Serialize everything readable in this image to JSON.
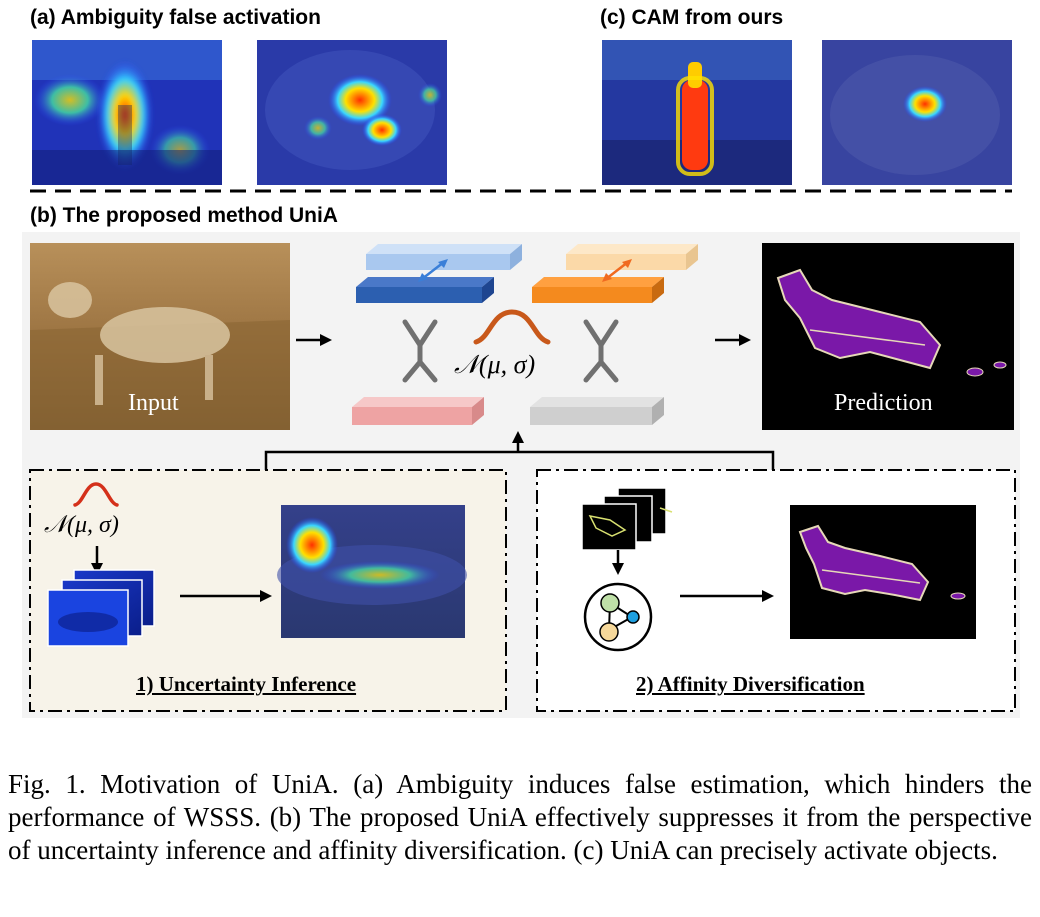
{
  "section_a": {
    "title": "(a) Ambiguity  false activation"
  },
  "section_c": {
    "title": "(c) CAM from ours"
  },
  "section_b": {
    "title": "(b) The proposed method UniA"
  },
  "labels": {
    "input": "Input",
    "prediction": "Prediction",
    "gaussian": "𝒩(μ, σ)",
    "gaussian_small": "𝒩(μ, σ)"
  },
  "panel1": {
    "title": "1) Uncertainty Inference"
  },
  "panel2": {
    "title": "2) Affinity Diversification"
  },
  "caption": "Fig. 1.  Motivation of UniA. (a) Ambiguity induces false estimation, which hinders the performance of WSSS. (b) The proposed UniA effectively suppresses it from the perspective of uncertainty inference and affinity diversification. (c) UniA can precisely activate objects."
}
